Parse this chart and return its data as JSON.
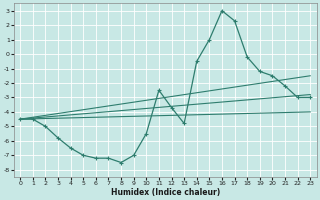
{
  "background_color": "#c8e8e5",
  "grid_color": "#ffffff",
  "line_color": "#2e7d6e",
  "xlabel": "Humidex (Indice chaleur)",
  "xlim": [
    -0.5,
    23.5
  ],
  "ylim": [
    -8.5,
    3.5
  ],
  "yticks": [
    3,
    2,
    1,
    0,
    -1,
    -2,
    -3,
    -4,
    -5,
    -6,
    -7,
    -8
  ],
  "xticks": [
    0,
    1,
    2,
    3,
    4,
    5,
    6,
    7,
    8,
    9,
    10,
    11,
    12,
    13,
    14,
    15,
    16,
    17,
    18,
    19,
    20,
    21,
    22,
    23
  ],
  "main_series": {
    "x": [
      0,
      1,
      2,
      3,
      4,
      5,
      6,
      7,
      8,
      9,
      10,
      11,
      12,
      13,
      14,
      15,
      16,
      17,
      18,
      19,
      20,
      21,
      22,
      23
    ],
    "y": [
      -4.5,
      -4.5,
      -5.0,
      -5.8,
      -6.5,
      -7.0,
      -7.2,
      -7.2,
      -7.5,
      -7.0,
      -5.5,
      -2.5,
      -3.7,
      -4.8,
      -0.5,
      1.0,
      3.0,
      2.3,
      -0.2,
      -1.2,
      -1.5,
      -2.2,
      -3.0,
      -3.0
    ]
  },
  "line1": {
    "x": [
      0,
      23
    ],
    "y": [
      -4.5,
      -2.8
    ]
  },
  "line2": {
    "x": [
      0,
      23
    ],
    "y": [
      -4.5,
      -1.5
    ]
  },
  "line3": {
    "x": [
      0,
      23
    ],
    "y": [
      -4.5,
      -4.0
    ]
  }
}
